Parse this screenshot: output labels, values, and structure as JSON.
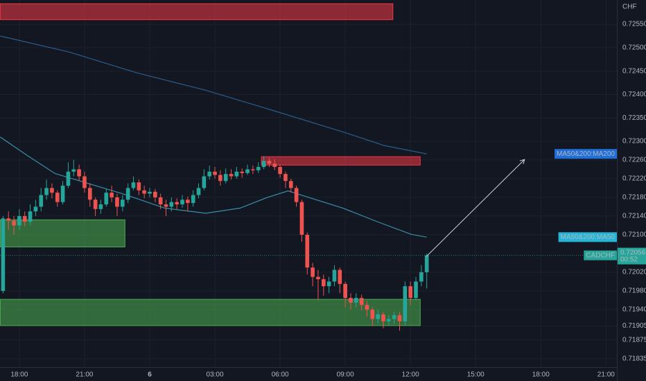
{
  "chart_data": {
    "type": "candlestick",
    "symbol": "CADCHF",
    "currency": "CHF",
    "countdown": "00:52",
    "up_color": "#26a69a",
    "down_color": "#ef5350",
    "x": [
      -0.75,
      -0.5,
      -0.25,
      0,
      0.25,
      0.5,
      0.75,
      1,
      1.25,
      1.5,
      1.75,
      2,
      2.25,
      2.5,
      2.75,
      3,
      3.25,
      3.5,
      3.75,
      4,
      4.25,
      4.5,
      4.75,
      5,
      5.25,
      5.5,
      5.75,
      6,
      6.25,
      6.5,
      6.75,
      7,
      7.25,
      7.5,
      7.75,
      8,
      8.25,
      8.5,
      8.75,
      9,
      9.25,
      9.5,
      9.75,
      10,
      10.25,
      10.5,
      10.75,
      11,
      11.25,
      11.5,
      11.75,
      12,
      12.25,
      12.5,
      12.75,
      13,
      13.25,
      13.5,
      13.75,
      14,
      14.25,
      14.5,
      14.75,
      15,
      15.25,
      15.5,
      15.75,
      16,
      16.25,
      16.5,
      16.75,
      17,
      17.25,
      17.5,
      17.75,
      18,
      18.25,
      18.5,
      18.75
    ],
    "open": [
      0.7198,
      0.72135,
      0.7213,
      0.7212,
      0.7214,
      0.72128,
      0.7215,
      0.7216,
      0.72185,
      0.722,
      0.7219,
      0.7217,
      0.72205,
      0.72235,
      0.7224,
      0.72225,
      0.722,
      0.72175,
      0.72155,
      0.72165,
      0.7219,
      0.7218,
      0.7216,
      0.72175,
      0.722,
      0.72212,
      0.72195,
      0.72188,
      0.72192,
      0.7218,
      0.72165,
      0.7216,
      0.7217,
      0.72165,
      0.72175,
      0.72168,
      0.72185,
      0.722,
      0.72225,
      0.72235,
      0.72228,
      0.72215,
      0.7223,
      0.72225,
      0.72235,
      0.72232,
      0.7224,
      0.72238,
      0.72245,
      0.72258,
      0.72252,
      0.72245,
      0.7223,
      0.72215,
      0.722,
      0.7217,
      0.721,
      0.7203,
      0.7201,
      0.72005,
      0.7199,
      0.72,
      0.72025,
      0.71995,
      0.71965,
      0.71955,
      0.71965,
      0.7195,
      0.7194,
      0.7192,
      0.7193,
      0.71915,
      0.7192,
      0.71928,
      0.71915,
      0.7199,
      0.71965,
      0.72,
      0.7202
    ],
    "high": [
      0.7214,
      0.7215,
      0.7214,
      0.72155,
      0.7215,
      0.72165,
      0.72175,
      0.722,
      0.72218,
      0.7221,
      0.72195,
      0.72215,
      0.72255,
      0.7226,
      0.7225,
      0.72235,
      0.7221,
      0.7218,
      0.72175,
      0.72198,
      0.72205,
      0.72188,
      0.72185,
      0.7221,
      0.72225,
      0.72218,
      0.72205,
      0.722,
      0.72198,
      0.72188,
      0.72175,
      0.7218,
      0.72178,
      0.72185,
      0.72182,
      0.72195,
      0.7221,
      0.7224,
      0.72248,
      0.72245,
      0.72238,
      0.72242,
      0.7224,
      0.72245,
      0.72242,
      0.7225,
      0.72248,
      0.72255,
      0.72268,
      0.72265,
      0.72262,
      0.7225,
      0.72235,
      0.7222,
      0.72205,
      0.72175,
      0.72105,
      0.7204,
      0.72025,
      0.72015,
      0.7201,
      0.72035,
      0.7203,
      0.72,
      0.71975,
      0.71975,
      0.71972,
      0.71958,
      0.71945,
      0.7194,
      0.71935,
      0.71928,
      0.71935,
      0.71935,
      0.72,
      0.72,
      0.7201,
      0.72035,
      0.7206
    ],
    "low": [
      0.71975,
      0.7211,
      0.721,
      0.7211,
      0.72118,
      0.7212,
      0.7214,
      0.7215,
      0.72175,
      0.72178,
      0.7216,
      0.72165,
      0.722,
      0.72225,
      0.72215,
      0.7219,
      0.7216,
      0.7214,
      0.72145,
      0.7216,
      0.7217,
      0.7214,
      0.7215,
      0.72168,
      0.72195,
      0.72185,
      0.72178,
      0.7218,
      0.7217,
      0.72155,
      0.7214,
      0.7215,
      0.72155,
      0.72158,
      0.7215,
      0.7216,
      0.72178,
      0.72195,
      0.72218,
      0.7222,
      0.72205,
      0.7221,
      0.72218,
      0.7222,
      0.72222,
      0.72228,
      0.7223,
      0.72232,
      0.7224,
      0.72245,
      0.72238,
      0.72222,
      0.722,
      0.7219,
      0.7216,
      0.72085,
      0.72015,
      0.7199,
      0.7196,
      0.7197,
      0.71975,
      0.7199,
      0.71975,
      0.71945,
      0.7194,
      0.71945,
      0.71938,
      0.71925,
      0.71905,
      0.7191,
      0.719,
      0.71905,
      0.7191,
      0.71895,
      0.71905,
      0.7195,
      0.7196,
      0.7199,
      0.71985
    ],
    "close": [
      0.72135,
      0.7213,
      0.7212,
      0.7214,
      0.72128,
      0.7215,
      0.7216,
      0.72185,
      0.722,
      0.7219,
      0.7217,
      0.72205,
      0.72235,
      0.7224,
      0.72225,
      0.722,
      0.72175,
      0.72155,
      0.72165,
      0.7219,
      0.7218,
      0.7216,
      0.72175,
      0.722,
      0.72212,
      0.72195,
      0.72188,
      0.72192,
      0.7218,
      0.72165,
      0.7216,
      0.7217,
      0.72165,
      0.72175,
      0.72168,
      0.72185,
      0.722,
      0.72225,
      0.72235,
      0.72228,
      0.72215,
      0.7223,
      0.72225,
      0.72235,
      0.72232,
      0.7224,
      0.72238,
      0.72245,
      0.72258,
      0.72252,
      0.72245,
      0.7223,
      0.72215,
      0.722,
      0.7217,
      0.721,
      0.7203,
      0.7201,
      0.72005,
      0.7199,
      0.72,
      0.72025,
      0.71995,
      0.71965,
      0.71955,
      0.71965,
      0.7195,
      0.7194,
      0.7192,
      0.7193,
      0.71915,
      0.7192,
      0.71928,
      0.71915,
      0.7199,
      0.71965,
      0.72,
      0.7202,
      0.72056
    ],
    "series": [
      {
        "name": "MA50&200:MA200",
        "color": "#2b5d8c",
        "label_color": "#1e6fd9",
        "x": [
          -0.88,
          2.27,
          5.43,
          8.58,
          11.73,
          14.89,
          16.78,
          18.74
        ],
        "values": [
          0.72525,
          0.72491,
          0.72446,
          0.72409,
          0.72365,
          0.7232,
          0.72291,
          0.72273
        ]
      },
      {
        "name": "MA50&200:MA50",
        "color": "#3a8fa6",
        "label_color": "#22b5d8",
        "x": [
          -0.88,
          0.38,
          1.64,
          3.22,
          4.8,
          6.69,
          8.58,
          10.16,
          11.42,
          12.37,
          13.31,
          14.89,
          16.47,
          18.04,
          18.74
        ],
        "values": [
          0.72309,
          0.72269,
          0.72231,
          0.72209,
          0.72187,
          0.72157,
          0.72146,
          0.72157,
          0.7218,
          0.72194,
          0.7218,
          0.72157,
          0.72128,
          0.72101,
          0.72095
        ]
      }
    ],
    "zones": [
      {
        "color": "#f23645",
        "x": [
          -0.88,
          17.19
        ],
        "y": [
          0.7256,
          0.72594
        ]
      },
      {
        "color": "#f23645",
        "x": [
          11.14,
          18.45
        ],
        "y": [
          0.72249,
          0.72267
        ]
      },
      {
        "color": "#4caf50",
        "x": [
          -0.88,
          4.86
        ],
        "y": [
          0.72074,
          0.72132
        ]
      },
      {
        "color": "#4caf50",
        "x": [
          -0.88,
          18.45
        ],
        "y": [
          0.71906,
          0.71962
        ]
      }
    ],
    "arrow": {
      "x": [
        18.74,
        23.25
      ],
      "y": [
        0.72054,
        0.72261
      ]
    },
    "xlim": [
      -0.89,
      27.5
    ],
    "ylim": [
      0.71817,
      0.72602
    ],
    "xticks": [
      {
        "value": 0,
        "label": "18:00"
      },
      {
        "value": 3,
        "label": "21:00"
      },
      {
        "value": 6,
        "label": "6"
      },
      {
        "value": 9,
        "label": "03:00"
      },
      {
        "value": 12,
        "label": "06:00"
      },
      {
        "value": 15,
        "label": "09:00"
      },
      {
        "value": 18,
        "label": "12:00"
      },
      {
        "value": 21,
        "label": "15:00"
      },
      {
        "value": 24,
        "label": "18:00"
      },
      {
        "value": 27,
        "label": "21:00"
      }
    ],
    "yticks": [
      {
        "value": 0.7255,
        "label": "0.72550"
      },
      {
        "value": 0.725,
        "label": "0.72500"
      },
      {
        "value": 0.7245,
        "label": "0.72450"
      },
      {
        "value": 0.724,
        "label": "0.72400"
      },
      {
        "value": 0.7235,
        "label": "0.72350"
      },
      {
        "value": 0.723,
        "label": "0.72300"
      },
      {
        "value": 0.7226,
        "label": "0.72260"
      },
      {
        "value": 0.7222,
        "label": "0.72220"
      },
      {
        "value": 0.7218,
        "label": "0.72180"
      },
      {
        "value": 0.7214,
        "label": "0.72140"
      },
      {
        "value": 0.721,
        "label": "0.72100"
      },
      {
        "value": 0.7202,
        "label": "0.72020"
      },
      {
        "value": 0.7198,
        "label": "0.71980"
      },
      {
        "value": 0.7194,
        "label": "0.71940"
      },
      0.71905,
      0.71875,
      0.71835
    ]
  }
}
